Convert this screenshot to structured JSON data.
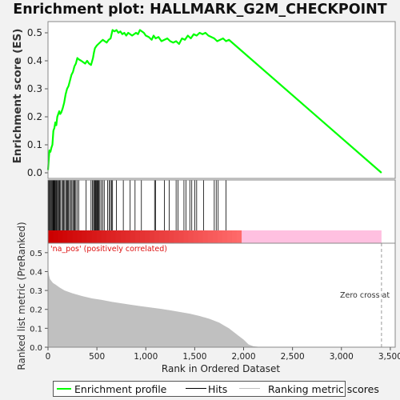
{
  "chart_data": {
    "type": "line",
    "title": "Enrichment plot: HALLMARK_G2M_CHECKPOINT",
    "xlabel": "Rank in Ordered Dataset",
    "panels": {
      "es": {
        "ylabel": "Enrichment score (ES)",
        "ylim": [
          -0.02,
          0.54
        ],
        "yticks": [
          "0.0",
          "0.1",
          "0.2",
          "0.3",
          "0.4",
          "0.5"
        ],
        "series": [
          {
            "name": "Enrichment profile",
            "color": "#00ff00",
            "x": [
              0,
              8,
              15,
              25,
              35,
              45,
              55,
              65,
              75,
              85,
              95,
              105,
              115,
              125,
              135,
              150,
              165,
              180,
              195,
              210,
              225,
              240,
              255,
              270,
              285,
              300,
              315,
              340,
              360,
              380,
              400,
              420,
              440,
              460,
              470,
              480,
              490,
              500,
              515,
              530,
              545,
              560,
              580,
              600,
              620,
              640,
              660,
              680,
              700,
              720,
              740,
              760,
              780,
              800,
              820,
              840,
              860,
              880,
              900,
              920,
              940,
              960,
              980,
              1000,
              1030,
              1060,
              1080,
              1100,
              1130,
              1160,
              1190,
              1220,
              1250,
              1280,
              1310,
              1340,
              1370,
              1400,
              1430,
              1460,
              1490,
              1520,
              1550,
              1580,
              1610,
              1640,
              1670,
              1700,
              1730,
              1760,
              1790,
              1820,
              1850,
              3410
            ],
            "y": [
              0.01,
              0.05,
              0.08,
              0.075,
              0.09,
              0.1,
              0.15,
              0.16,
              0.18,
              0.17,
              0.2,
              0.21,
              0.22,
              0.21,
              0.215,
              0.23,
              0.25,
              0.28,
              0.3,
              0.31,
              0.33,
              0.35,
              0.36,
              0.38,
              0.39,
              0.41,
              0.405,
              0.4,
              0.395,
              0.39,
              0.4,
              0.39,
              0.385,
              0.41,
              0.43,
              0.445,
              0.45,
              0.455,
              0.46,
              0.465,
              0.47,
              0.475,
              0.47,
              0.465,
              0.475,
              0.48,
              0.51,
              0.505,
              0.51,
              0.5,
              0.505,
              0.495,
              0.5,
              0.49,
              0.5,
              0.495,
              0.49,
              0.495,
              0.5,
              0.495,
              0.51,
              0.505,
              0.5,
              0.49,
              0.485,
              0.475,
              0.49,
              0.48,
              0.485,
              0.47,
              0.475,
              0.48,
              0.47,
              0.465,
              0.47,
              0.46,
              0.48,
              0.475,
              0.49,
              0.48,
              0.495,
              0.49,
              0.5,
              0.495,
              0.5,
              0.49,
              0.485,
              0.48,
              0.47,
              0.475,
              0.48,
              0.47,
              0.475,
              0.0
            ]
          }
        ]
      },
      "hits": {
        "series": [
          {
            "name": "Hits",
            "color": "#000000",
            "x": [
              5,
              12,
              20,
              30,
              38,
              45,
              52,
              58,
              64,
              70,
              78,
              85,
              92,
              100,
              110,
              118,
              125,
              140,
              150,
              160,
              170,
              182,
              192,
              200,
              210,
              220,
              232,
              244,
              255,
              265,
              275,
              285,
              300,
              315,
              390,
              440,
              455,
              465,
              475,
              482,
              490,
              498,
              505,
              512,
              520,
              530,
              545,
              560,
              575,
              610,
              625,
              638,
              650,
              660,
              700,
              770,
              840,
              890,
              955,
              1090,
              1100,
              1190,
              1240,
              1310,
              1330,
              1390,
              1410,
              1450,
              1470,
              1500,
              1520,
              1590,
              1700,
              1720,
              1740,
              1820
            ]
          }
        ]
      },
      "metric": {
        "ylabel": "Ranked list metric (PreRanked)",
        "ylim": [
          0.0,
          0.55
        ],
        "yticks": [
          "0.0",
          "0.1",
          "0.2",
          "0.3",
          "0.4",
          "0.5"
        ],
        "series": [
          {
            "name": "Ranking metric scores",
            "color": "#c0c0c0",
            "x": [
              0,
              5,
              10,
              20,
              35,
              50,
              80,
              120,
              170,
              250,
              350,
              450,
              550,
              650,
              750,
              850,
              950,
              1050,
              1150,
              1250,
              1350,
              1450,
              1550,
              1650,
              1750,
              1800,
              1850,
              1900,
              1950,
              2000,
              2050,
              2100,
              2150,
              2200,
              2300,
              2500,
              3000,
              3410
            ],
            "y": [
              0.42,
              0.4,
              0.38,
              0.36,
              0.35,
              0.34,
              0.33,
              0.315,
              0.3,
              0.285,
              0.27,
              0.258,
              0.25,
              0.24,
              0.232,
              0.224,
              0.217,
              0.21,
              0.203,
              0.195,
              0.186,
              0.177,
              0.165,
              0.15,
              0.13,
              0.115,
              0.1,
              0.08,
              0.06,
              0.04,
              0.015,
              0.005,
              0.002,
              0.001,
              0.0,
              0.0,
              0.0,
              0.0
            ]
          }
        ]
      }
    },
    "xlim": [
      0,
      3550
    ],
    "xticks": [
      {
        "v": 0,
        "label": "0"
      },
      {
        "v": 500,
        "label": "500"
      },
      {
        "v": 1000,
        "label": "1,000"
      },
      {
        "v": 1500,
        "label": "1,500"
      },
      {
        "v": 2000,
        "label": "2,000"
      },
      {
        "v": 2500,
        "label": "2,500"
      },
      {
        "v": 3000,
        "label": "3,000"
      },
      {
        "v": 3500,
        "label": "3,500"
      }
    ],
    "annotations": {
      "pos_label": "'na_pos' (positively correlated)",
      "zero_cross": "Zero cross at",
      "zero_cross_rank": 3410
    },
    "colorbar": {
      "n_items": 3410,
      "pos_end": 1980,
      "colors": [
        "#cc0000",
        "#ff6a6a",
        "#ffc0e0"
      ]
    },
    "legend": {
      "placement": "bottom",
      "items": [
        {
          "label": "Enrichment profile",
          "color": "#00ff00"
        },
        {
          "label": "Hits",
          "color": "#000000"
        },
        {
          "label": "Ranking metric scores",
          "color": "#c0c0c0"
        }
      ]
    }
  }
}
